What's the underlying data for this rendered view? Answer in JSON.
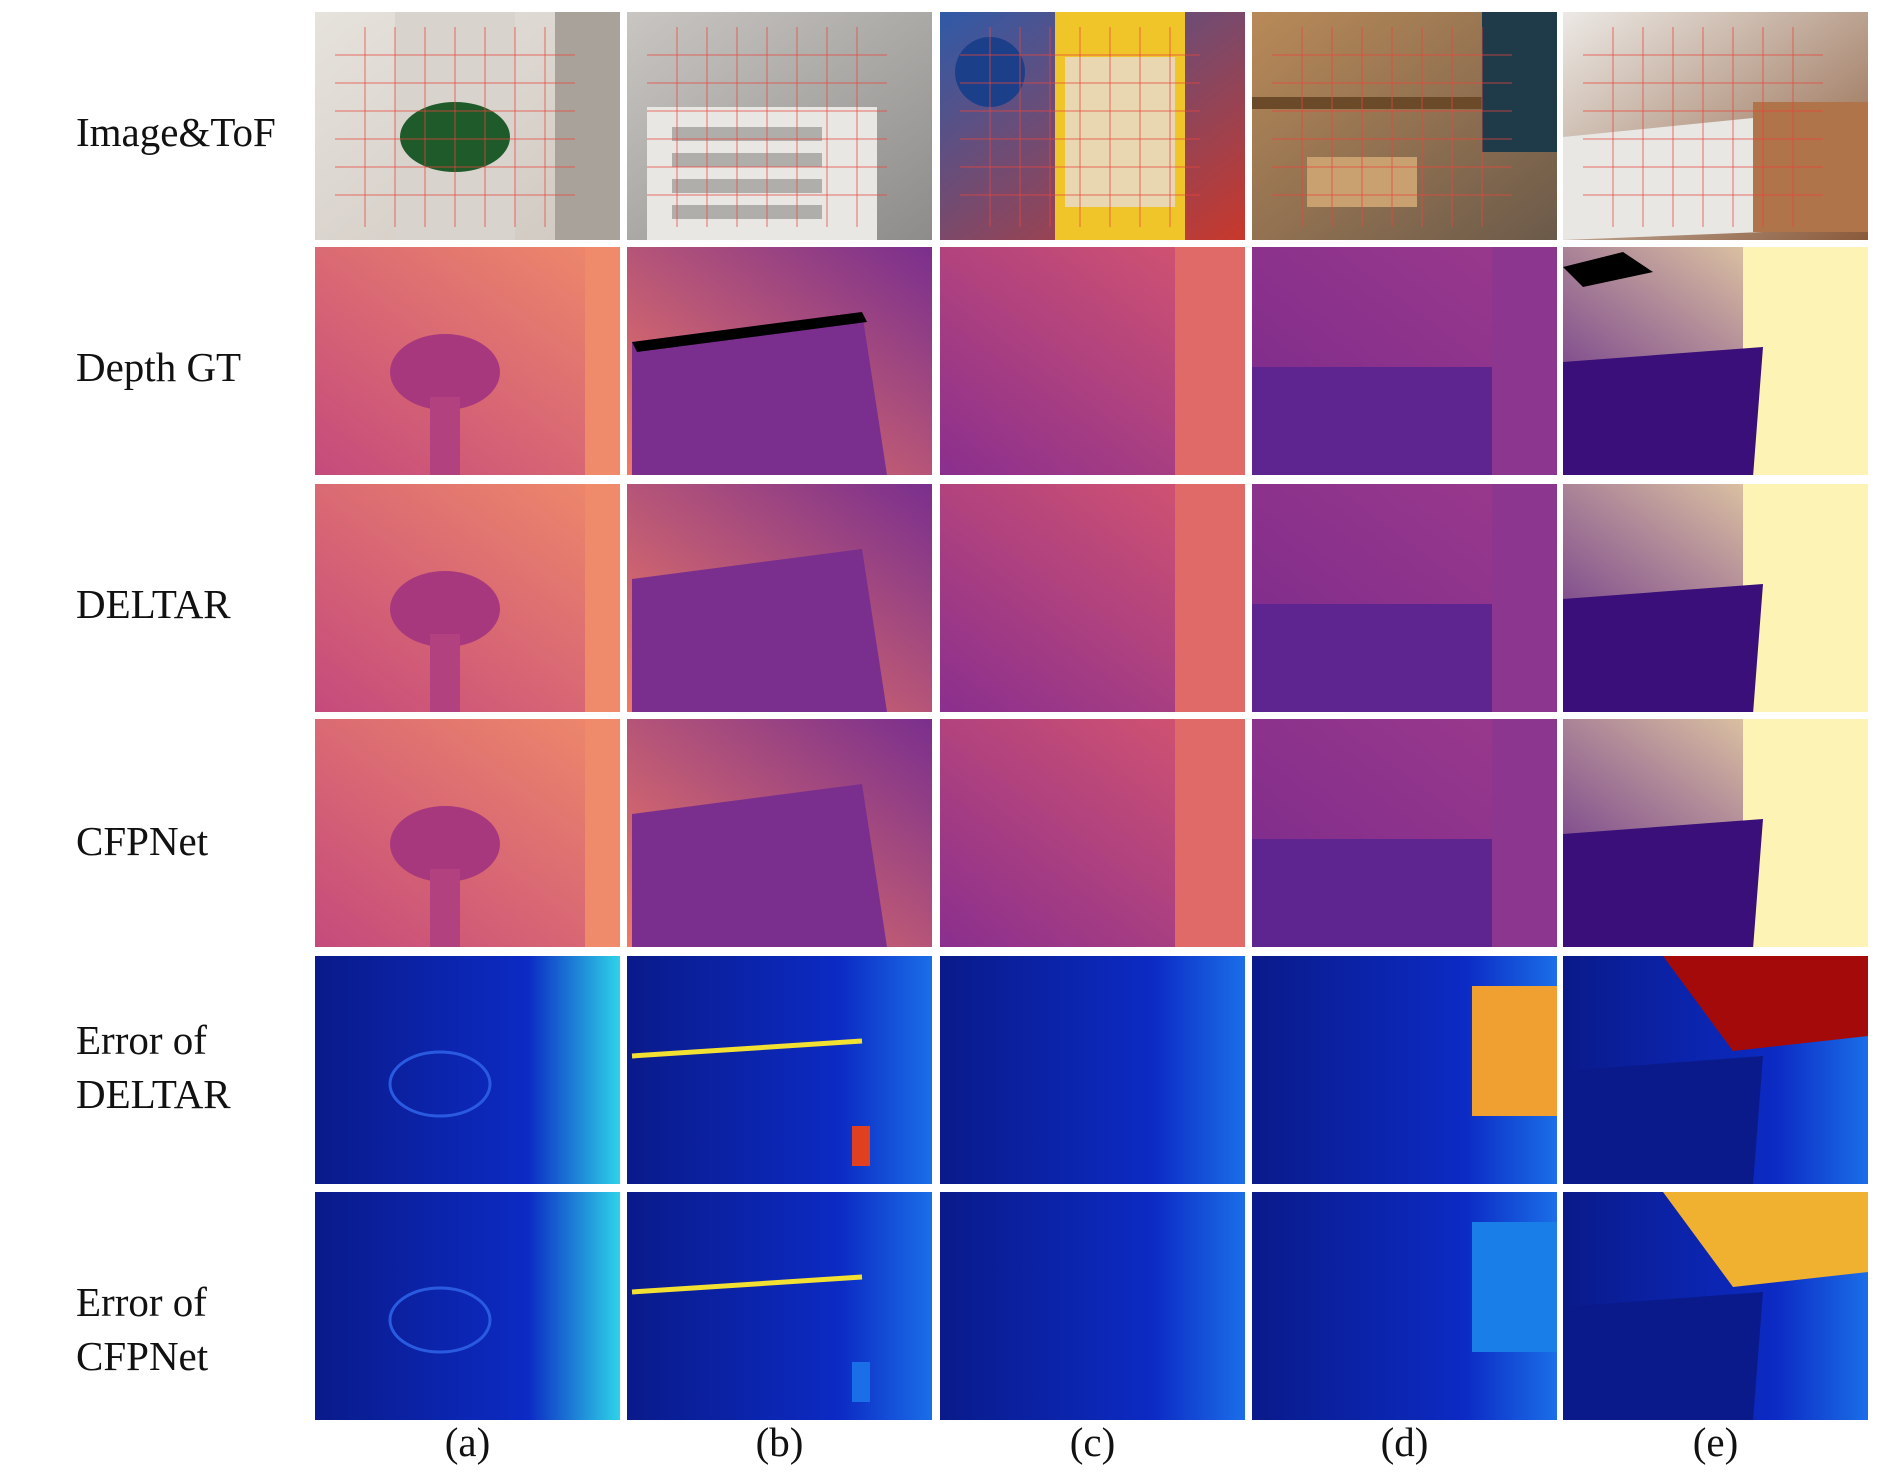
{
  "figure": {
    "row_labels": [
      "Image&ToF",
      "Depth GT",
      "DELTAR",
      "CFPNet",
      "Error of\nDELTAR",
      "Error of\nCFPNet"
    ],
    "column_labels": [
      "(a)",
      "(b)",
      "(c)",
      "(d)",
      "(e)"
    ],
    "colors": {
      "tof_grid": "#e8463c",
      "depth_near": "#3a0f7a",
      "depth_mid": "#c0467f",
      "depth_far": "#fcf3b4",
      "error_low": "#0a1a8a",
      "error_mid": "#2ed3e8",
      "error_high": "#a40a0a",
      "invalid": "#000000"
    }
  }
}
